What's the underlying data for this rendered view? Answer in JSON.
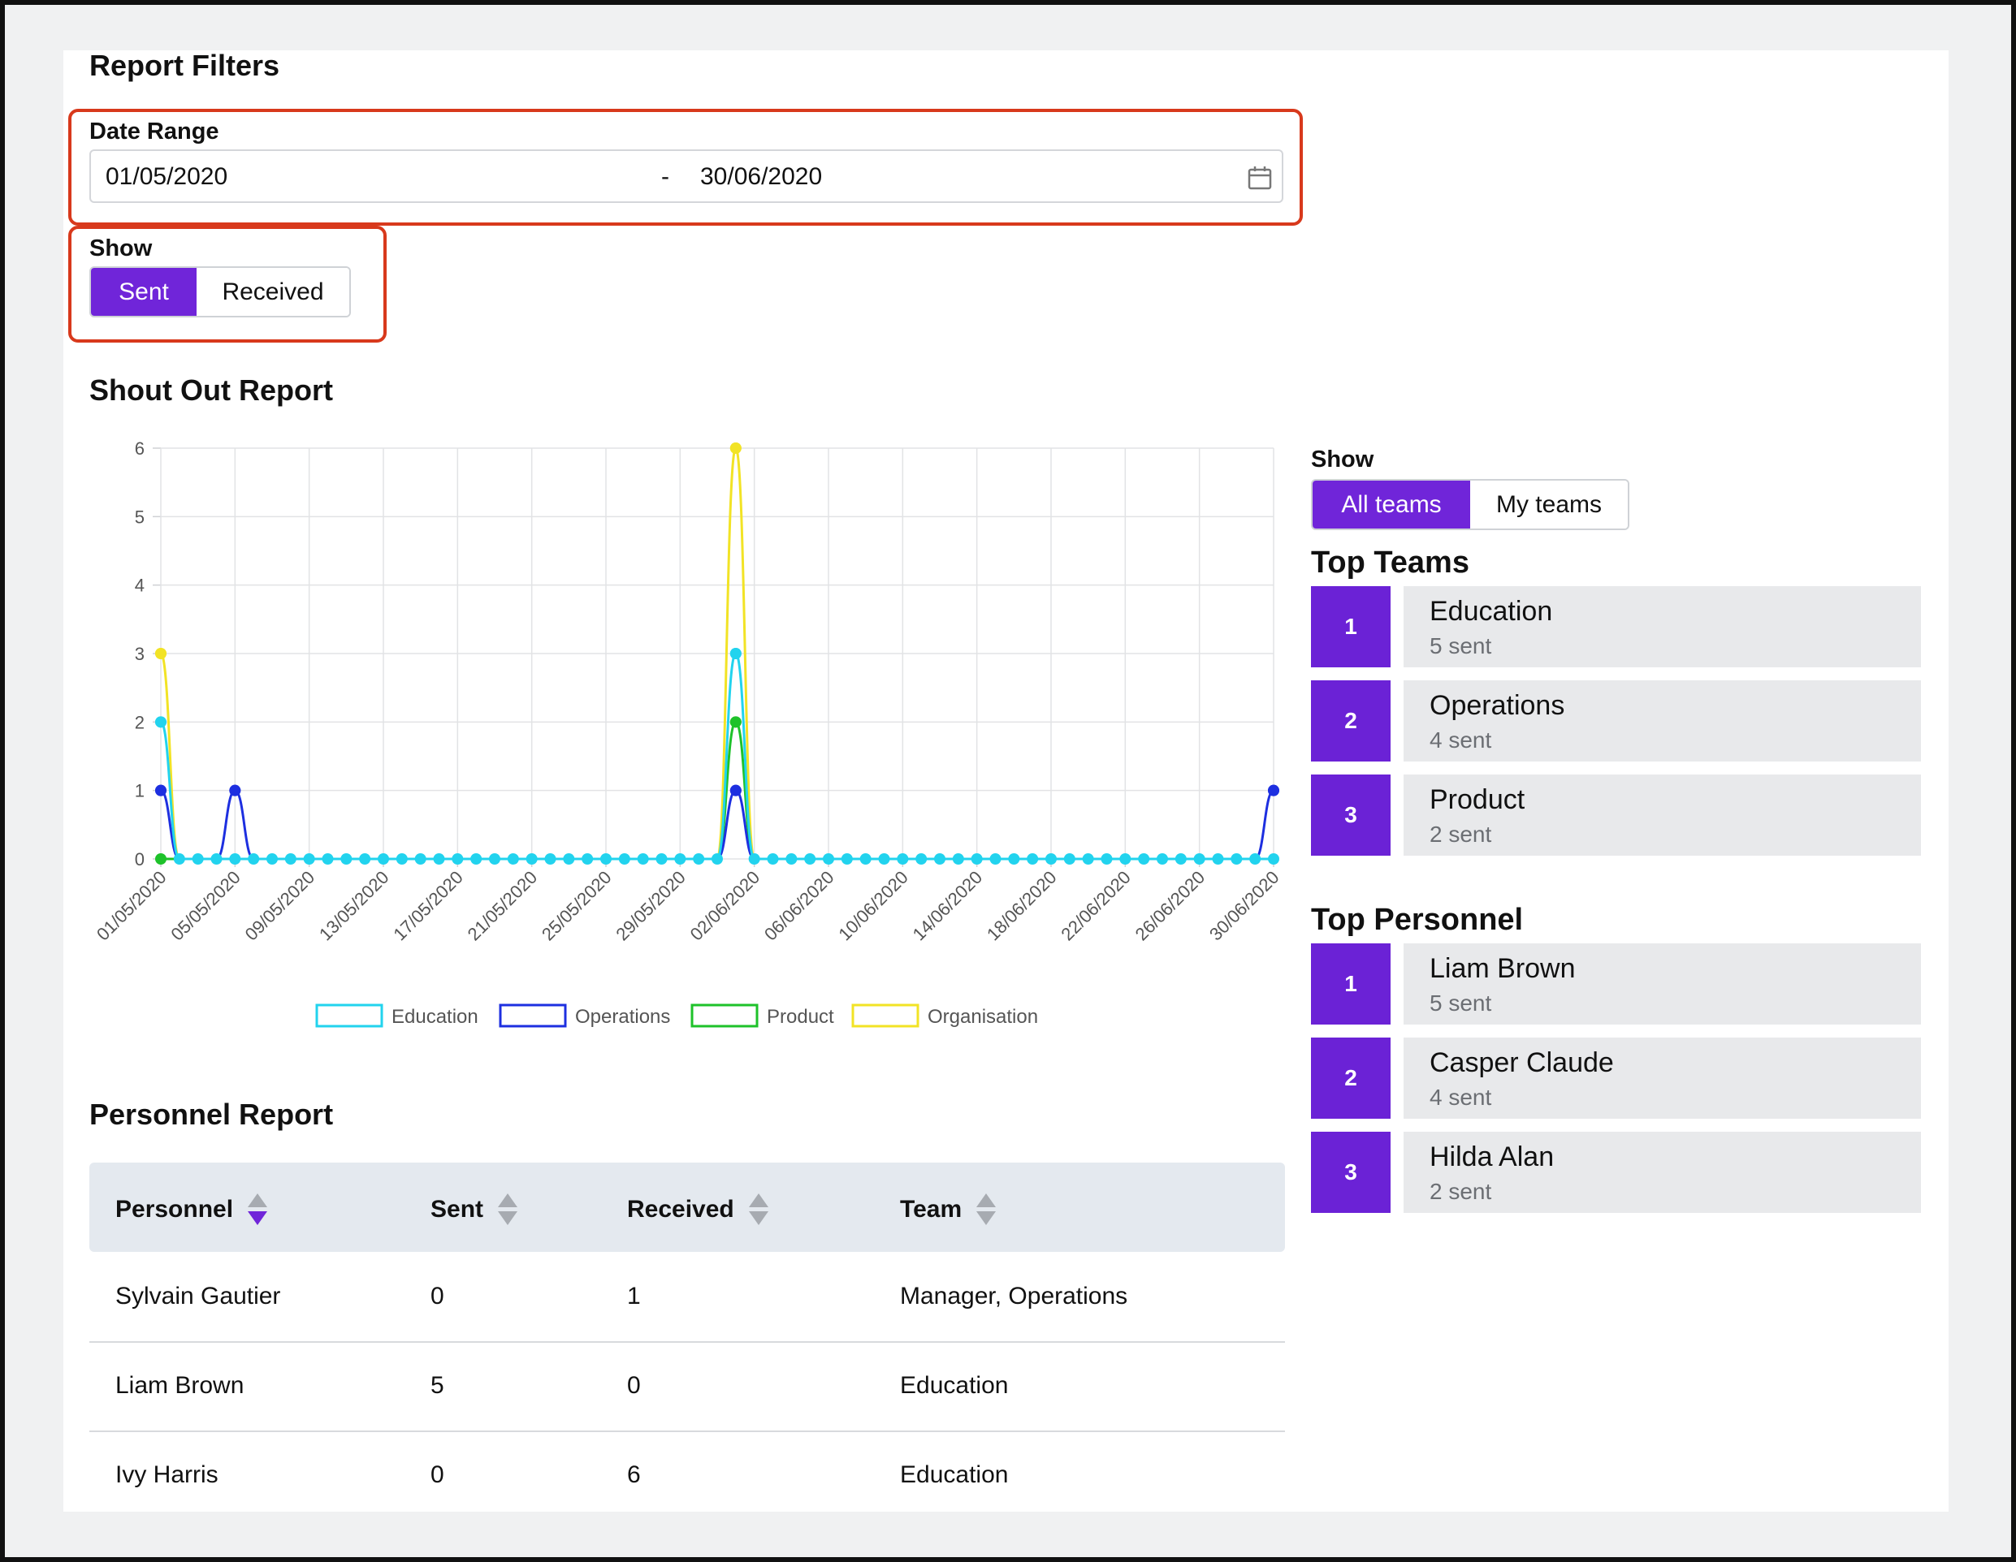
{
  "filters": {
    "title": "Report Filters",
    "date_range_label": "Date Range",
    "date_start": "01/05/2020",
    "date_separator": "-",
    "date_end": "30/06/2020",
    "show_label": "Show",
    "show_options": [
      "Sent",
      "Received"
    ],
    "show_selected": "Sent"
  },
  "chart_section": {
    "title": "Shout Out Report"
  },
  "chart_data": {
    "type": "line",
    "x": [
      "01/05/2020",
      "02/05/2020",
      "03/05/2020",
      "04/05/2020",
      "05/05/2020",
      "06/05/2020",
      "07/05/2020",
      "08/05/2020",
      "09/05/2020",
      "10/05/2020",
      "11/05/2020",
      "12/05/2020",
      "13/05/2020",
      "14/05/2020",
      "15/05/2020",
      "16/05/2020",
      "17/05/2020",
      "18/05/2020",
      "19/05/2020",
      "20/05/2020",
      "21/05/2020",
      "22/05/2020",
      "23/05/2020",
      "24/05/2020",
      "25/05/2020",
      "26/05/2020",
      "27/05/2020",
      "28/05/2020",
      "29/05/2020",
      "30/05/2020",
      "31/05/2020",
      "01/06/2020",
      "02/06/2020",
      "03/06/2020",
      "04/06/2020",
      "05/06/2020",
      "06/06/2020",
      "07/06/2020",
      "08/06/2020",
      "09/06/2020",
      "10/06/2020",
      "11/06/2020",
      "12/06/2020",
      "13/06/2020",
      "14/06/2020",
      "15/06/2020",
      "16/06/2020",
      "17/06/2020",
      "18/06/2020",
      "19/06/2020",
      "20/06/2020",
      "21/06/2020",
      "22/06/2020",
      "23/06/2020",
      "24/06/2020",
      "25/06/2020",
      "26/06/2020",
      "27/06/2020",
      "28/06/2020",
      "29/06/2020",
      "30/06/2020"
    ],
    "tick_labels": [
      "01/05/2020",
      "05/05/2020",
      "09/05/2020",
      "13/05/2020",
      "17/05/2020",
      "21/05/2020",
      "25/05/2020",
      "29/05/2020",
      "02/06/2020",
      "06/06/2020",
      "10/06/2020",
      "14/06/2020",
      "18/06/2020",
      "22/06/2020",
      "26/06/2020",
      "30/06/2020"
    ],
    "ylim": [
      0,
      6
    ],
    "yticks": [
      0,
      1,
      2,
      3,
      4,
      5,
      6
    ],
    "grid": true,
    "legend_position": "bottom",
    "series": [
      {
        "name": "Education",
        "color": "#22d3ee",
        "nonzero": {
          "0": 2,
          "31": 3
        }
      },
      {
        "name": "Operations",
        "color": "#1d2fe0",
        "nonzero": {
          "0": 1,
          "4": 1,
          "31": 1,
          "60": 1
        }
      },
      {
        "name": "Product",
        "color": "#1ec22a",
        "nonzero": {
          "31": 2
        }
      },
      {
        "name": "Organisation",
        "color": "#f2e325",
        "nonzero": {
          "0": 3,
          "31": 6
        }
      }
    ]
  },
  "teams_panel": {
    "show_label": "Show",
    "show_options": [
      "All teams",
      "My teams"
    ],
    "show_selected": "All teams",
    "top_teams_title": "Top Teams",
    "top_teams": [
      {
        "rank": "1",
        "name": "Education",
        "sub": "5 sent"
      },
      {
        "rank": "2",
        "name": "Operations",
        "sub": "4 sent"
      },
      {
        "rank": "3",
        "name": "Product",
        "sub": "2 sent"
      }
    ],
    "top_personnel_title": "Top Personnel",
    "top_personnel": [
      {
        "rank": "1",
        "name": "Liam Brown",
        "sub": "5 sent"
      },
      {
        "rank": "2",
        "name": "Casper Claude",
        "sub": "4 sent"
      },
      {
        "rank": "3",
        "name": "Hilda Alan",
        "sub": "2 sent"
      }
    ]
  },
  "personnel_report": {
    "title": "Personnel Report",
    "columns": [
      "Personnel",
      "Sent",
      "Received",
      "Team"
    ],
    "rows": [
      [
        "Sylvain Gautier",
        "0",
        "1",
        "Manager, Operations"
      ],
      [
        "Liam Brown",
        "5",
        "0",
        "Education"
      ],
      [
        "Ivy Harris",
        "0",
        "6",
        "Education"
      ]
    ]
  }
}
